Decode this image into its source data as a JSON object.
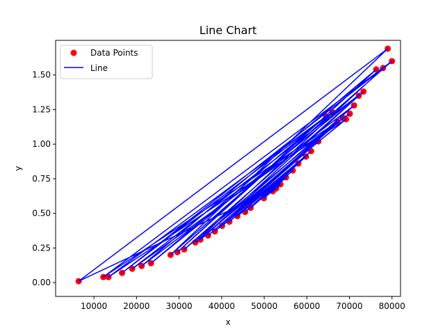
{
  "chart_data": {
    "type": "line",
    "title": "Line Chart",
    "xlabel": "x",
    "ylabel": "y",
    "xlim": [
      1000,
      82000
    ],
    "ylim": [
      -0.1,
      1.75
    ],
    "x_ticks": [
      10000,
      20000,
      30000,
      40000,
      50000,
      60000,
      70000,
      80000
    ],
    "x_tick_labels": [
      "10000",
      "20000",
      "30000",
      "40000",
      "50000",
      "60000",
      "70000",
      "80000"
    ],
    "y_ticks": [
      0.0,
      0.25,
      0.5,
      0.75,
      1.0,
      1.25,
      1.5
    ],
    "y_tick_labels": [
      "0.00",
      "0.25",
      "0.50",
      "0.75",
      "1.00",
      "1.25",
      "1.50"
    ],
    "grid": false,
    "legend_position": "top-left",
    "series": [
      {
        "name": "Data Points",
        "kind": "scatter",
        "color": "#ff0000",
        "x": [
          6400,
          12200,
          13400,
          16600,
          19000,
          21200,
          23400,
          28000,
          29600,
          31200,
          33800,
          35000,
          36800,
          38400,
          40100,
          41800,
          43700,
          45500,
          46800,
          49900,
          52000,
          52800,
          53800,
          55100,
          56700,
          58000,
          59800,
          61000,
          62700,
          64500,
          66000,
          67200,
          68500,
          69200,
          70100,
          71100,
          72200,
          73300,
          76300,
          77900,
          79000,
          80000
        ],
        "y": [
          0.01,
          0.04,
          0.04,
          0.07,
          0.1,
          0.12,
          0.14,
          0.2,
          0.22,
          0.24,
          0.29,
          0.31,
          0.34,
          0.37,
          0.41,
          0.44,
          0.48,
          0.51,
          0.54,
          0.61,
          0.66,
          0.68,
          0.71,
          0.76,
          0.81,
          0.86,
          0.91,
          0.95,
          1.02,
          1.2,
          1.23,
          1.16,
          1.19,
          1.18,
          1.22,
          1.28,
          1.35,
          1.38,
          1.54,
          1.55,
          1.69,
          1.6
        ]
      },
      {
        "name": "Line",
        "kind": "line",
        "color": "#0000ff",
        "x": [
          6400,
          79000,
          28000,
          80000,
          12200,
          70100,
          19000,
          73300,
          23400,
          64500,
          13400,
          69200,
          33800,
          77900,
          16600,
          66000,
          29600,
          76300,
          21200,
          71100,
          35000,
          72200,
          31200,
          67200,
          36800,
          68500,
          38400,
          62700,
          40100,
          61000,
          41800,
          59800,
          43700,
          58000,
          45500,
          56700,
          46800,
          55100,
          49900,
          53800,
          52000,
          52800,
          6400
        ],
        "y": [
          0.01,
          1.69,
          0.2,
          1.6,
          0.04,
          1.22,
          0.1,
          1.38,
          0.14,
          1.2,
          0.04,
          1.18,
          0.29,
          1.55,
          0.07,
          1.23,
          0.22,
          1.54,
          0.12,
          1.28,
          0.31,
          1.35,
          0.24,
          1.16,
          0.34,
          1.19,
          0.37,
          1.02,
          0.41,
          0.95,
          0.44,
          0.91,
          0.48,
          0.86,
          0.51,
          0.81,
          0.54,
          0.76,
          0.61,
          0.71,
          0.66,
          0.68,
          0.01
        ]
      }
    ]
  }
}
